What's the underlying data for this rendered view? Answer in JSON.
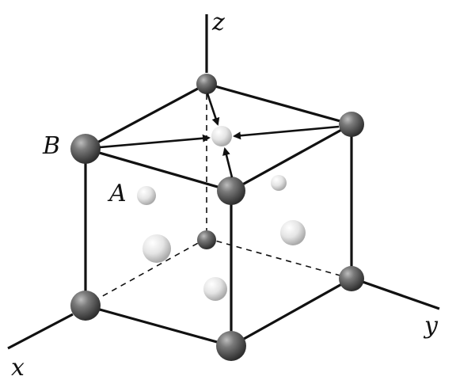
{
  "labels": {
    "z": "z",
    "x": "x",
    "y": "y",
    "A": "A",
    "B": "B"
  },
  "colors": {
    "corner_atom": "#5a5a5a",
    "face_atom": "#e6e6e6",
    "line": "#111111",
    "background": "#ffffff"
  }
}
